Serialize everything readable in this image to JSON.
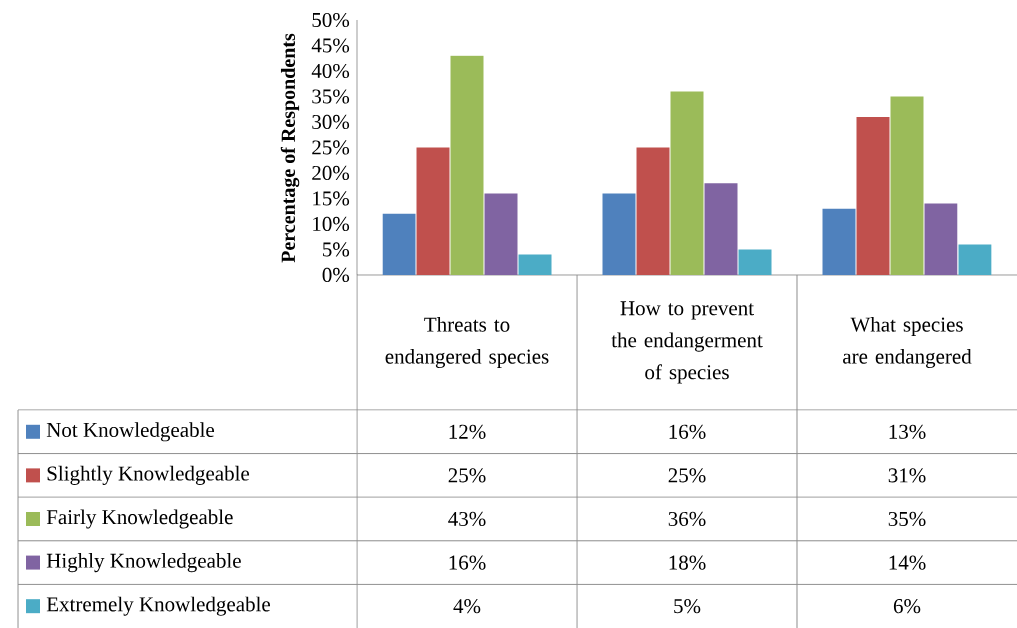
{
  "chart_data": {
    "type": "bar",
    "ylabel": "Percentage of Respondents",
    "categories": [
      "Threats to endangered species",
      "How to prevent the endangerment of species",
      "What species are endangered"
    ],
    "series": [
      {
        "name": "Not Knowledgeable",
        "color": "#4f81bd",
        "values": [
          12,
          16,
          13
        ],
        "value_labels": [
          "12%",
          "16%",
          "13%"
        ]
      },
      {
        "name": "Slightly Knowledgeable",
        "color": "#c0504d",
        "values": [
          25,
          25,
          31
        ],
        "value_labels": [
          "25%",
          "25%",
          "31%"
        ]
      },
      {
        "name": "Fairly Knowledgeable",
        "color": "#9bbb59",
        "values": [
          43,
          36,
          35
        ],
        "value_labels": [
          "43%",
          "36%",
          "35%"
        ]
      },
      {
        "name": "Highly Knowledgeable",
        "color": "#8064a2",
        "values": [
          16,
          18,
          14
        ],
        "value_labels": [
          "16%",
          "18%",
          "14%"
        ]
      },
      {
        "name": "Extremely Knowledgeable",
        "color": "#4bacc6",
        "values": [
          4,
          5,
          6
        ],
        "value_labels": [
          "4%",
          "5%",
          "6%"
        ]
      }
    ],
    "ylim": [
      0,
      50
    ],
    "yticks": [
      {
        "value": 0,
        "label": "0%"
      },
      {
        "value": 5,
        "label": "5%"
      },
      {
        "value": 10,
        "label": "10%"
      },
      {
        "value": 15,
        "label": "15%"
      },
      {
        "value": 20,
        "label": "20%"
      },
      {
        "value": 25,
        "label": "25%"
      },
      {
        "value": 30,
        "label": "30%"
      },
      {
        "value": 35,
        "label": "35%"
      },
      {
        "value": 40,
        "label": "40%"
      },
      {
        "value": 45,
        "label": "45%"
      },
      {
        "value": 50,
        "label": "50%"
      }
    ],
    "legend": "bottom",
    "grid": false
  }
}
